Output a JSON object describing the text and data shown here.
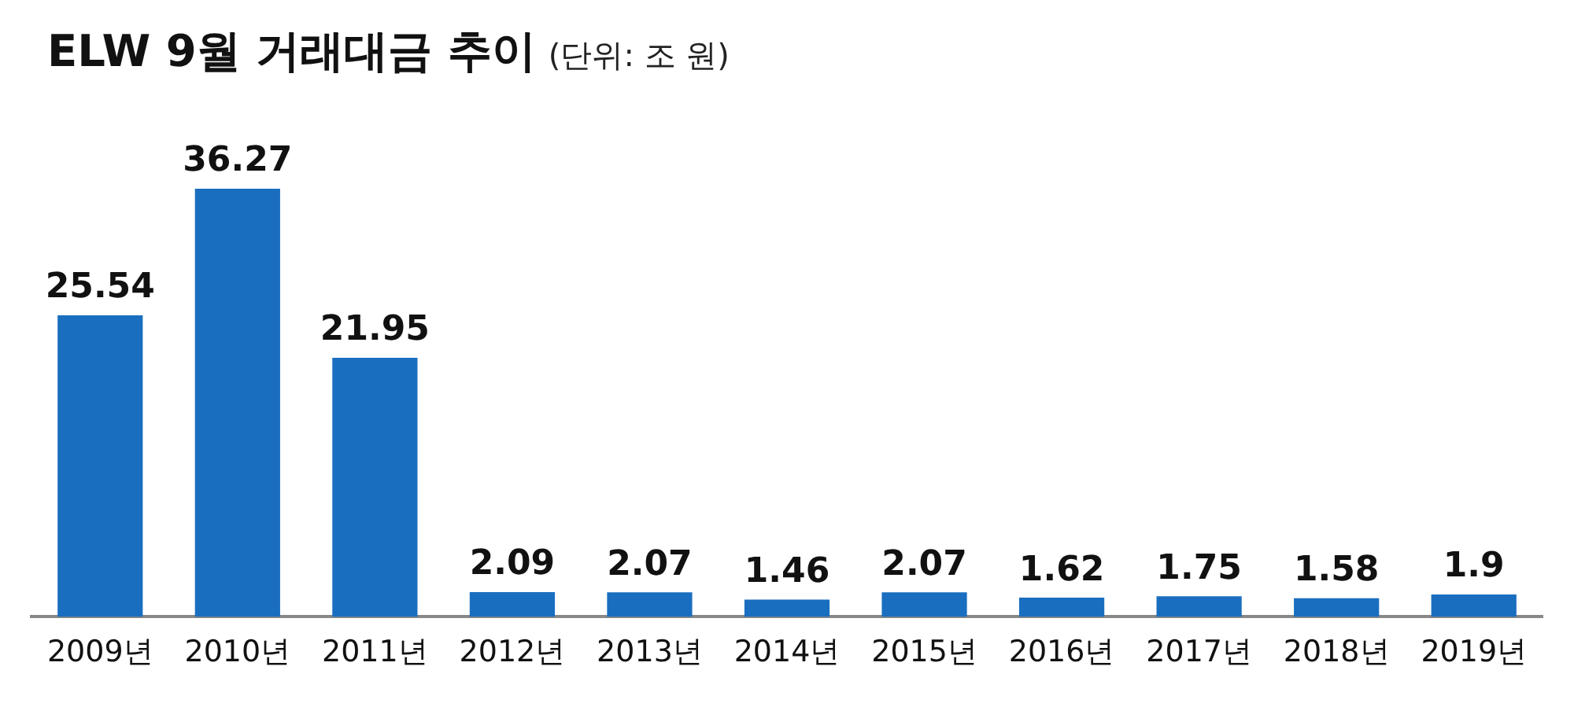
{
  "chart_data": {
    "type": "bar",
    "title": "ELW 9월 거래대금 추이",
    "subtitle": "(단위: 조 원)",
    "categories": [
      "2009년",
      "2010년",
      "2011년",
      "2012년",
      "2013년",
      "2014년",
      "2015년",
      "2016년",
      "2017년",
      "2018년",
      "2019년"
    ],
    "values": [
      25.54,
      36.27,
      21.95,
      2.09,
      2.07,
      1.46,
      2.07,
      1.62,
      1.75,
      1.58,
      1.9
    ],
    "color": "#1a6ebf",
    "data_labels": true,
    "grid": false,
    "legend": false
  }
}
